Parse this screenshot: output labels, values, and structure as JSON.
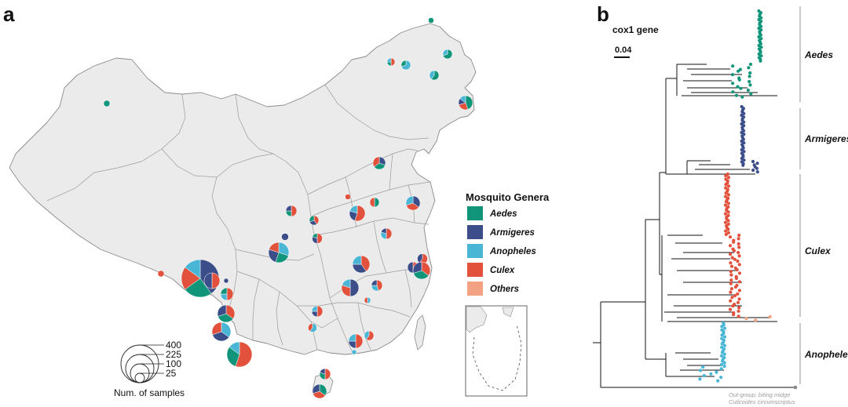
{
  "panel_a": {
    "label": "a",
    "legend": {
      "title": "Mosquito Genera",
      "items": [
        {
          "name": "Aedes",
          "color": "#11957a"
        },
        {
          "name": "Armigeres",
          "color": "#3b4e8a"
        },
        {
          "name": "Anopheles",
          "color": "#49b6d6"
        },
        {
          "name": "Culex",
          "color": "#e2513c"
        },
        {
          "name": "Others",
          "color": "#f2a183"
        }
      ]
    },
    "size_legend": {
      "values": [
        "400",
        "225",
        "100",
        "25"
      ],
      "title": "Num. of samples"
    }
  },
  "panel_b": {
    "label": "b",
    "gene_title": "cox1 gene",
    "scale_bar": "0.04",
    "clades": [
      {
        "name": "Aedes",
        "color": "#11957a"
      },
      {
        "name": "Armigeres",
        "color": "#3b4e8a"
      },
      {
        "name": "Culex",
        "color": "#e2513c"
      },
      {
        "name": "Anopheles",
        "color": "#49b6d6"
      }
    ],
    "outgroup_line1": "Out-group: biting midge",
    "outgroup_line2": "Culicoides circumscriptus"
  }
}
